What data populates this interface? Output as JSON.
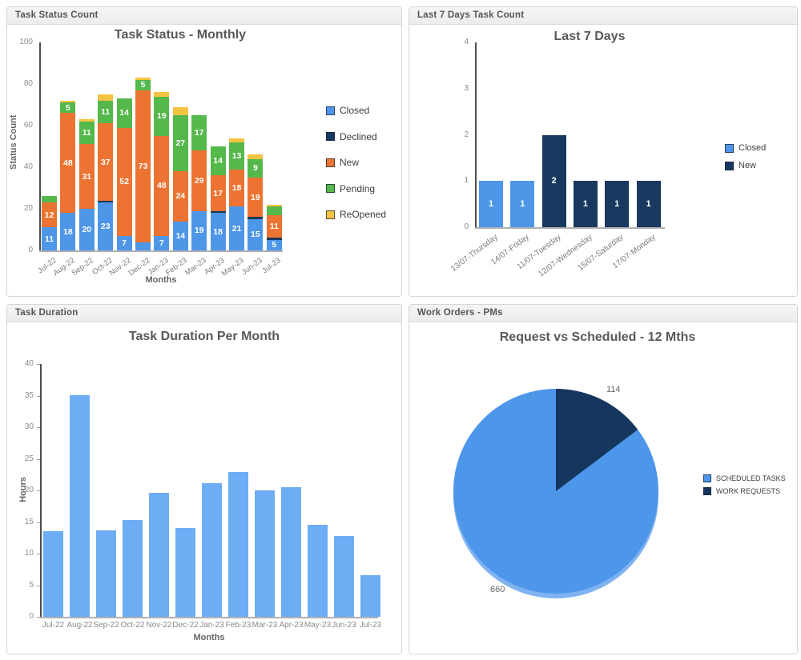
{
  "panels": [
    {
      "header": "Task Status Count"
    },
    {
      "header": "Last 7 Days Task Count"
    },
    {
      "header": "Task Duration"
    },
    {
      "header": "Work Orders - PMs"
    }
  ],
  "chart_data": [
    {
      "id": "task-status-monthly",
      "type": "bar",
      "stacked": true,
      "title": "Task Status - Monthly",
      "xlabel": "Months",
      "ylabel": "Status Count",
      "ylim": [
        0,
        100
      ],
      "yticks": [
        0,
        20,
        40,
        60,
        80,
        100
      ],
      "grid": false,
      "legend_position": "right",
      "categories": [
        "Jul-22",
        "Aug-22",
        "Sep-22",
        "Oct-22",
        "Nov-22",
        "Dec-22",
        "Jan-23",
        "Feb-23",
        "Mar-23",
        "Apr-23",
        "May-23",
        "Jun-23",
        "Jul-23"
      ],
      "series": [
        {
          "name": "Closed",
          "color": "#4D96E8",
          "values": [
            11,
            18,
            20,
            23,
            7,
            4,
            7,
            14,
            19,
            18,
            21,
            15,
            5
          ]
        },
        {
          "name": "Declined",
          "color": "#17395F",
          "values": [
            0,
            0,
            0,
            1,
            0,
            0,
            0,
            0,
            0,
            1,
            0,
            1,
            1
          ]
        },
        {
          "name": "New",
          "color": "#EC7331",
          "values": [
            12,
            48,
            31,
            37,
            52,
            73,
            48,
            24,
            29,
            17,
            18,
            19,
            11
          ]
        },
        {
          "name": "Pending",
          "color": "#55B84B",
          "values": [
            3,
            5,
            11,
            11,
            14,
            5,
            19,
            27,
            17,
            14,
            13,
            9,
            4
          ]
        },
        {
          "name": "ReOpened",
          "color": "#F5C342",
          "values": [
            0,
            1,
            1,
            3,
            0,
            1,
            2,
            4,
            0,
            0,
            2,
            2,
            1
          ]
        }
      ],
      "label_min_value": 5
    },
    {
      "id": "last-7-days",
      "type": "bar",
      "stacked": false,
      "title": "Last 7 Days",
      "xlabel": "",
      "ylabel": "",
      "ylim": [
        0,
        4
      ],
      "yticks": [
        0,
        1,
        2,
        3,
        4
      ],
      "grid": false,
      "legend_position": "right",
      "categories": [
        "13/07-Thursday",
        "14/07-Friday",
        "11/07-Tuesday",
        "12/07-Wednesday",
        "15/07-Saturday",
        "17/07-Monday"
      ],
      "values": [
        1,
        1,
        2,
        1,
        1,
        1
      ],
      "bar_series": [
        "Closed",
        "Closed",
        "New",
        "New",
        "New",
        "New"
      ],
      "legend": [
        {
          "name": "Closed",
          "color": "#4D96E8"
        },
        {
          "name": "New",
          "color": "#17395F"
        }
      ]
    },
    {
      "id": "task-duration-per-month",
      "type": "bar",
      "stacked": false,
      "title": "Task Duration Per Month",
      "xlabel": "Months",
      "ylabel": "Hours",
      "ylim": [
        0,
        40
      ],
      "yticks": [
        0,
        5,
        10,
        15,
        20,
        25,
        30,
        35,
        40
      ],
      "grid": false,
      "legend_position": "none",
      "categories": [
        "Jul-22",
        "Aug-22",
        "Sep-22",
        "Oct-22",
        "Nov-22",
        "Dec-22",
        "Jan-23",
        "Feb-23",
        "Mar-23",
        "Apr-23",
        "May-23",
        "Jun-23",
        "Jul-23"
      ],
      "values": [
        13.5,
        35.1,
        13.7,
        15.3,
        19.6,
        14.0,
        21.2,
        22.9,
        20.0,
        20.5,
        14.5,
        12.8,
        6.6
      ],
      "bar_color": "#6CADF3"
    },
    {
      "id": "request-vs-scheduled",
      "type": "pie",
      "title": "Request vs Scheduled - 12 Mths",
      "legend_position": "right",
      "slices": [
        {
          "name": "SCHEDULED TASKS",
          "value": 660,
          "color": "#4D96E9"
        },
        {
          "name": "WORK REQUESTS",
          "value": 114,
          "color": "#14365F"
        }
      ],
      "rim_color": "#7FB2F1"
    }
  ]
}
